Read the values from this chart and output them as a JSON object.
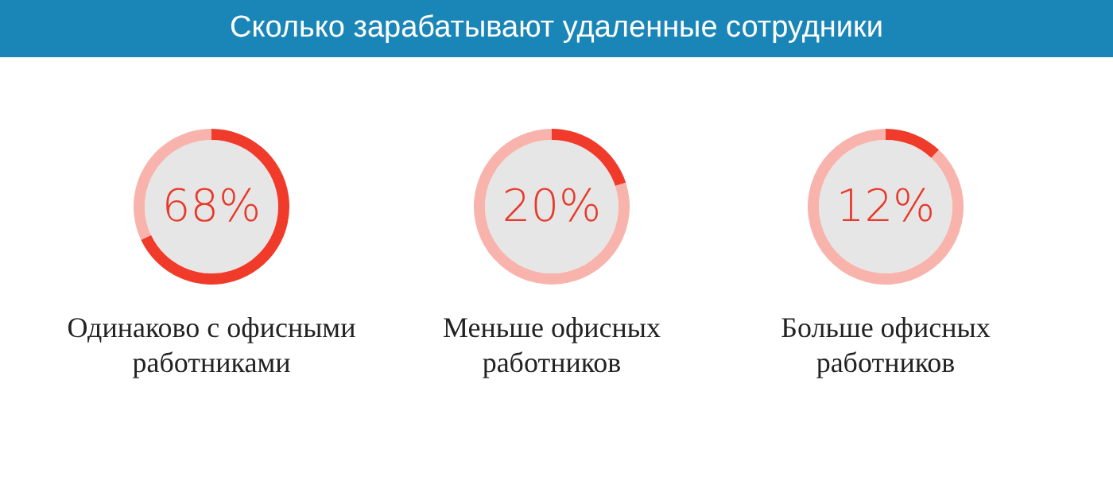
{
  "chart_data": [
    {
      "type": "donut",
      "title": "Сколько зарабатывают удаленные сотрудники",
      "annotations": [
        "Одинаково с офисными работниками"
      ],
      "categories": [
        null,
        null
      ],
      "values": [
        68,
        32
      ],
      "colors": [
        "#f03b2b",
        "#f8b4ac"
      ],
      "value_labels": [
        "68%",
        null
      ]
    },
    {
      "type": "donut",
      "annotations": [
        "Меньше офисных работников"
      ],
      "categories": [
        null,
        null
      ],
      "values": [
        20,
        80
      ],
      "colors": [
        "#f03b2b",
        "#f8b4ac"
      ],
      "value_labels": [
        "20%",
        null
      ]
    },
    {
      "type": "donut",
      "annotations": [
        "Больше офисных работников"
      ],
      "categories": [
        null,
        null
      ],
      "values": [
        12,
        88
      ],
      "colors": [
        "#f03b2b",
        "#f8b4ac"
      ],
      "value_labels": [
        "12%",
        null
      ]
    }
  ]
}
